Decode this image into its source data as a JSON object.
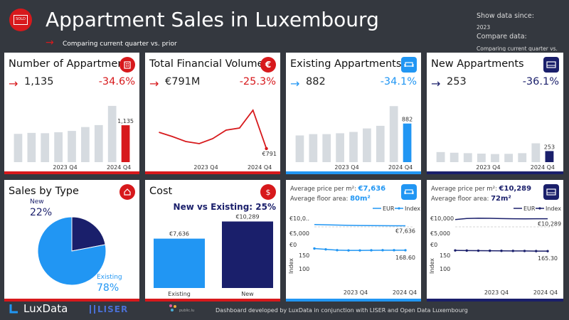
{
  "header": {
    "title": "Appartment Sales in Luxembourg",
    "subtitle": "Comparing current quarter vs. prior",
    "logo_text": "SOLD",
    "filters": {
      "since_label": "Show data since:",
      "since_value": "2023",
      "compare_label": "Compare data:",
      "compare_value": "Comparing current quarter vs."
    }
  },
  "kpis": [
    {
      "title": "Number of Appartmen..",
      "value": "1,135",
      "pct": "-34.6%",
      "color": "#d7191c",
      "last_label": "1,135",
      "icon": "building-icon"
    },
    {
      "title": "Total Financial Volume",
      "value": "€791M",
      "pct": "-25.3%",
      "color": "#d7191c",
      "last_label": "€791",
      "icon": "euro-icon"
    },
    {
      "title": "Existing Appartments",
      "value": "882",
      "pct": "-34.1%",
      "color": "#2196f3",
      "last_label": "882",
      "icon": "sofa-icon"
    },
    {
      "title": "New Appartments",
      "value": "253",
      "pct": "-36.1%",
      "color": "#1a1f6b",
      "last_label": "253",
      "icon": "bed-icon"
    }
  ],
  "axis_labels": {
    "q1": "2023 Q4",
    "q2": "2024 Q4"
  },
  "sales_by_type": {
    "title": "Sales by Type",
    "new_label": "New",
    "new_pct": "22%",
    "existing_label": "Existing",
    "existing_pct": "78%",
    "icon": "hand-house-icon"
  },
  "cost": {
    "title": "Cost",
    "subtitle": "New vs Existing: 25%",
    "icon": "money-bag-icon",
    "bars": [
      {
        "label": "Existing",
        "value_label": "€7,636"
      },
      {
        "label": "New",
        "value_label": "€10,289"
      }
    ]
  },
  "price_cards": [
    {
      "price_label": "Average price per m²:",
      "price_value": "€7,636",
      "area_label": "Average floor area:",
      "area_value": "80m²",
      "legend_eur": "EUR",
      "legend_index": "Index",
      "y_top": "€10,0..",
      "y_mid": "€5,000",
      "y_zero": "€0",
      "y_150": "150",
      "y_100": "100",
      "ylabel": "Index",
      "end_eur": "€7,636",
      "end_index": "168.60",
      "color": "#2196f3",
      "icon": "sofa-icon"
    },
    {
      "price_label": "Average price per m²:",
      "price_value": "€10,289",
      "area_label": "Average floor area:",
      "area_value": "72m²",
      "legend_eur": "EUR",
      "legend_index": "Index",
      "y_top": "€10,000",
      "y_mid": "€5,000",
      "y_zero": "€0",
      "y_150": "150",
      "y_100": "100",
      "ylabel": "Index",
      "end_eur": "€10,289",
      "end_index": "165.30",
      "color": "#1a1f6b",
      "icon": "bed-icon"
    }
  ],
  "chart_data": [
    {
      "type": "bar",
      "title": "Number of Appartmen..",
      "values": [
        870,
        900,
        890,
        920,
        960,
        1080,
        1140,
        1730,
        1135
      ]
    },
    {
      "type": "line",
      "title": "Total Financial Volume",
      "values": [
        1020,
        960,
        890,
        860,
        930,
        1050,
        1080,
        1330,
        791
      ]
    },
    {
      "type": "bar",
      "title": "Existing Appartments",
      "values": [
        610,
        640,
        640,
        660,
        690,
        770,
        830,
        1280,
        882
      ]
    },
    {
      "type": "bar",
      "title": "New Appartments",
      "values": [
        230,
        215,
        205,
        195,
        185,
        190,
        205,
        430,
        253
      ]
    },
    {
      "type": "pie",
      "title": "Sales by Type",
      "categories": [
        "New",
        "Existing"
      ],
      "values": [
        22,
        78
      ]
    },
    {
      "type": "bar",
      "title": "Cost",
      "categories": [
        "Existing",
        "New"
      ],
      "values": [
        7636,
        10289
      ]
    },
    {
      "type": "line",
      "series": [
        {
          "name": "EUR",
          "values": [
            8100,
            8000,
            7900,
            7800,
            7750,
            7700,
            7680,
            7650,
            7636
          ]
        },
        {
          "name": "Index",
          "values": [
            175,
            172,
            169,
            168,
            168,
            168.5,
            168.8,
            168.9,
            168.6
          ]
        }
      ]
    },
    {
      "type": "line",
      "series": [
        {
          "name": "EUR",
          "values": [
            10000,
            10400,
            10500,
            10450,
            10350,
            10300,
            10250,
            10310,
            10289
          ]
        },
        {
          "name": "Index",
          "values": [
            168,
            167.5,
            167,
            166.8,
            166.5,
            166.2,
            166,
            165.6,
            165.3
          ]
        }
      ]
    }
  ],
  "footer": {
    "brand": "LuxData",
    "liser": "LISER",
    "partner": "public.lu",
    "credit": "Dashboard developed by LuxData in conjunction with LISER and Open Data Luxembourg"
  },
  "colors": {
    "red": "#d7191c",
    "blue": "#2196f3",
    "navy": "#1a1f6b",
    "grey": "#d6dbe0"
  }
}
